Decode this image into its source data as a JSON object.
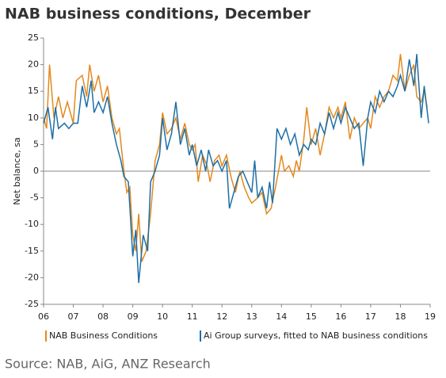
{
  "chart_data": {
    "type": "line",
    "title": "NAB business conditions, December",
    "y_label": "Net balance, sa",
    "source": "Source: NAB, AiG, ANZ Research",
    "xlim": [
      2006,
      2019
    ],
    "xticks": [
      {
        "value": 2006,
        "label": "06"
      },
      {
        "value": 2007,
        "label": "07"
      },
      {
        "value": 2008,
        "label": "08"
      },
      {
        "value": 2009,
        "label": "09"
      },
      {
        "value": 2010,
        "label": "10"
      },
      {
        "value": 2011,
        "label": "11"
      },
      {
        "value": 2012,
        "label": "12"
      },
      {
        "value": 2013,
        "label": "13"
      },
      {
        "value": 2014,
        "label": "14"
      },
      {
        "value": 2015,
        "label": "15"
      },
      {
        "value": 2016,
        "label": "16"
      },
      {
        "value": 2017,
        "label": "17"
      },
      {
        "value": 2018,
        "label": "18"
      },
      {
        "value": 2019,
        "label": "19"
      }
    ],
    "ylim": [
      -25,
      25
    ],
    "yticks": [
      -25,
      -20,
      -15,
      -10,
      -5,
      0,
      5,
      10,
      15,
      20,
      25
    ],
    "grid": false,
    "legend": "bottom",
    "series": [
      {
        "name": "NAB Business Conditions",
        "color": "#e3891e",
        "x": [
          2006.0,
          2006.1,
          2006.2,
          2006.35,
          2006.5,
          2006.65,
          2006.8,
          2007.0,
          2007.1,
          2007.3,
          2007.45,
          2007.55,
          2007.7,
          2007.85,
          2008.0,
          2008.15,
          2008.3,
          2008.45,
          2008.55,
          2008.7,
          2008.8,
          2008.9,
          2009.0,
          2009.1,
          2009.2,
          2009.3,
          2009.45,
          2009.6,
          2009.75,
          2009.9,
          2010.0,
          2010.15,
          2010.3,
          2010.45,
          2010.6,
          2010.75,
          2010.9,
          2011.0,
          2011.1,
          2011.2,
          2011.35,
          2011.5,
          2011.6,
          2011.75,
          2011.9,
          2012.0,
          2012.15,
          2012.3,
          2012.45,
          2012.6,
          2012.75,
          2012.9,
          2013.0,
          2013.2,
          2013.35,
          2013.5,
          2013.65,
          2013.8,
          2013.9,
          2014.0,
          2014.1,
          2014.25,
          2014.4,
          2014.5,
          2014.6,
          2014.75,
          2014.85,
          2015.0,
          2015.15,
          2015.3,
          2015.45,
          2015.6,
          2015.75,
          2015.9,
          2016.0,
          2016.15,
          2016.3,
          2016.45,
          2016.6,
          2016.75,
          2016.9,
          2017.0,
          2017.15,
          2017.3,
          2017.45,
          2017.6,
          2017.75,
          2017.9,
          2018.0,
          2018.15,
          2018.3,
          2018.45,
          2018.55,
          2018.7,
          2018.8,
          2018.9
        ],
        "values": [
          10,
          8,
          20,
          10,
          14,
          10,
          13,
          9,
          17,
          18,
          14,
          20,
          15,
          18,
          13,
          16,
          10,
          7,
          8,
          0,
          -4,
          -3,
          -12,
          -15,
          -8,
          -17,
          -15,
          -8,
          2,
          5,
          11,
          7,
          8,
          10,
          6,
          9,
          5,
          4,
          5,
          -2,
          3,
          1,
          -2,
          2,
          3,
          1,
          3,
          -1,
          -4,
          0,
          -3,
          -5,
          -6,
          -5,
          -4,
          -8,
          -7,
          -3,
          0,
          3,
          0,
          1,
          -1,
          2,
          0,
          6,
          12,
          5,
          8,
          3,
          7,
          12,
          10,
          12,
          10,
          13,
          6,
          10,
          8,
          9,
          10,
          8,
          14,
          12,
          14,
          15,
          18,
          17,
          22,
          15,
          18,
          20,
          14,
          13,
          15,
          12
        ]
      },
      {
        "name": "Ai Group surveys, fitted to NAB business conditions",
        "color": "#1d6fa5",
        "x": [
          2006.0,
          2006.15,
          2006.3,
          2006.4,
          2006.5,
          2006.7,
          2006.85,
          2007.0,
          2007.15,
          2007.3,
          2007.45,
          2007.6,
          2007.7,
          2007.85,
          2008.0,
          2008.15,
          2008.3,
          2008.45,
          2008.6,
          2008.7,
          2008.85,
          2009.0,
          2009.1,
          2009.2,
          2009.35,
          2009.5,
          2009.6,
          2009.75,
          2009.9,
          2010.0,
          2010.15,
          2010.3,
          2010.45,
          2010.6,
          2010.75,
          2010.9,
          2011.0,
          2011.15,
          2011.3,
          2011.45,
          2011.55,
          2011.7,
          2011.85,
          2012.0,
          2012.15,
          2012.25,
          2012.4,
          2012.55,
          2012.7,
          2012.85,
          2013.0,
          2013.1,
          2013.2,
          2013.35,
          2013.5,
          2013.6,
          2013.7,
          2013.85,
          2014.0,
          2014.15,
          2014.3,
          2014.45,
          2014.6,
          2014.75,
          2014.9,
          2015.0,
          2015.15,
          2015.3,
          2015.45,
          2015.6,
          2015.75,
          2015.9,
          2016.0,
          2016.15,
          2016.3,
          2016.45,
          2016.6,
          2016.75,
          2016.9,
          2017.0,
          2017.15,
          2017.3,
          2017.45,
          2017.6,
          2017.75,
          2017.9,
          2018.0,
          2018.15,
          2018.3,
          2018.45,
          2018.55,
          2018.7,
          2018.8,
          2018.95
        ],
        "values": [
          9,
          12,
          6,
          12,
          8,
          9,
          8,
          9,
          9,
          16,
          12,
          17,
          11,
          13,
          11,
          14,
          9,
          5,
          2,
          -1,
          -2,
          -16,
          -11,
          -21,
          -12,
          -15,
          -2,
          0,
          3,
          10,
          4,
          7,
          13,
          5,
          8,
          3,
          5,
          1,
          4,
          0,
          4,
          1,
          2,
          0,
          2,
          -7,
          -4,
          -1,
          0,
          -2,
          -4,
          2,
          -5,
          -3,
          -7,
          -2,
          -6,
          8,
          6,
          8,
          5,
          7,
          3,
          5,
          4,
          6,
          5,
          9,
          7,
          11,
          8,
          11,
          9,
          12,
          10,
          8,
          9,
          1,
          10,
          13,
          11,
          15,
          13,
          15,
          14,
          16,
          18,
          15,
          21,
          16,
          22,
          10,
          16,
          9
        ]
      }
    ]
  }
}
